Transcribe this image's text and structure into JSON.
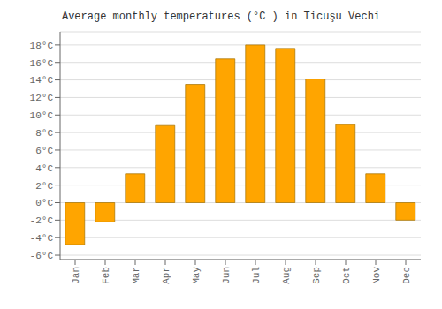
{
  "chart_data": {
    "type": "bar",
    "title": "Average monthly temperatures (°C ) in Ticuşu Vechi",
    "categories": [
      "Jan",
      "Feb",
      "Mar",
      "Apr",
      "May",
      "Jun",
      "Jul",
      "Aug",
      "Sep",
      "Oct",
      "Nov",
      "Dec"
    ],
    "values": [
      -4.8,
      -2.2,
      3.3,
      8.8,
      13.5,
      16.4,
      18.0,
      17.6,
      14.1,
      8.9,
      3.3,
      -2.0
    ],
    "color": "#FFA500",
    "ylim": [
      -6.5,
      19.5
    ],
    "yticks": [
      {
        "value": -6,
        "label": "-6°C"
      },
      {
        "value": -4,
        "label": "-4°C"
      },
      {
        "value": -2,
        "label": "-2°C"
      },
      {
        "value": 0,
        "label": "0°C"
      },
      {
        "value": 2,
        "label": "2°C"
      },
      {
        "value": 4,
        "label": "4°C"
      },
      {
        "value": 6,
        "label": "6°C"
      },
      {
        "value": 8,
        "label": "8°C"
      },
      {
        "value": 10,
        "label": "10°C"
      },
      {
        "value": 12,
        "label": "12°C"
      },
      {
        "value": 14,
        "label": "14°C"
      },
      {
        "value": 16,
        "label": "16°C"
      },
      {
        "value": 18,
        "label": "18°C"
      }
    ],
    "grid": true
  }
}
